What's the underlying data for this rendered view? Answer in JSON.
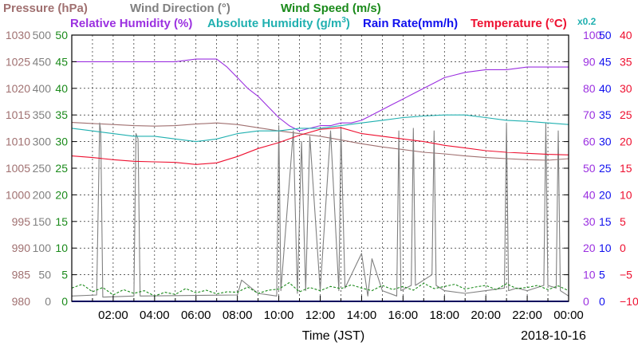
{
  "legend": {
    "pressure": "Pressure (hPa)",
    "wind_direction": "Wind Direction (°)",
    "wind_speed": "Wind Speed (m/s)",
    "relative_humidity": "Relative Humidity (%)",
    "absolute_humidity": "Absolute Humidity (g/m",
    "absolute_humidity_sup": "3",
    "absolute_humidity_close": ")",
    "absolute_humidity_scale": "x0.2",
    "rain_rate": "Rain Rate(mm/h)",
    "temperature": "Temperature (°C)"
  },
  "xlabel": "Time (JST)",
  "date": "2018-10-16",
  "colors": {
    "pressure": "#a07070",
    "wind_direction": "#808080",
    "wind_speed": "#1a8a1a",
    "relative_humidity": "#9b30e0",
    "absolute_humidity": "#20b0b0",
    "rain_rate": "#1010ee",
    "temperature": "#ee1030"
  },
  "chart_data": {
    "type": "line",
    "title": "",
    "xlabel": "Time (JST)",
    "x_unit": "hours (JST), 2018-10-16",
    "xlim": [
      0,
      24
    ],
    "x_ticks": [
      "02:00",
      "04:00",
      "06:00",
      "08:00",
      "10:00",
      "12:00",
      "14:00",
      "16:00",
      "18:00",
      "20:00",
      "22:00",
      "00:00"
    ],
    "grid": true,
    "y_axes": {
      "pressure": {
        "ticks": [
          "1030",
          "1025",
          "1020",
          "1015",
          "1010",
          "1005",
          "1000",
          "995",
          "990",
          "985",
          "980"
        ],
        "ylim": [
          980,
          1030
        ]
      },
      "wind_direction": {
        "ticks": [
          "500",
          "450",
          "400",
          "350",
          "300",
          "250",
          "200",
          "150",
          "100",
          "50",
          "0"
        ],
        "ylim": [
          0,
          500
        ]
      },
      "wind_speed": {
        "ticks": [
          "50",
          "45",
          "40",
          "35",
          "30",
          "25",
          "20",
          "15",
          "10",
          "5",
          "0"
        ],
        "ylim": [
          0,
          50
        ]
      },
      "relative_humidity": {
        "ticks": [
          "100",
          "90",
          "80",
          "70",
          "60",
          "50",
          "40",
          "30",
          "20",
          "10",
          "0"
        ],
        "ylim": [
          0,
          100
        ]
      },
      "rain_rate": {
        "ticks": [
          "50",
          "45",
          "40",
          "35",
          "30",
          "25",
          "20",
          "15",
          "10",
          "5",
          "0"
        ],
        "ylim": [
          0,
          50
        ]
      },
      "temperature": {
        "ticks": [
          "40",
          "35",
          "30",
          "25",
          "20",
          "15",
          "10",
          "5",
          "0",
          "−5",
          "−10"
        ],
        "ylim": [
          -10,
          40
        ]
      }
    },
    "series": [
      {
        "name": "Pressure (hPa)",
        "axis": "pressure",
        "x": [
          0,
          1,
          2,
          3,
          4,
          5,
          6,
          7,
          8,
          9,
          10,
          11,
          12,
          13,
          14,
          15,
          16,
          17,
          18,
          19,
          20,
          21,
          22,
          23,
          24
        ],
        "y": [
          1013.6,
          1013.4,
          1013.2,
          1013.0,
          1012.9,
          1013.0,
          1013.3,
          1013.5,
          1013.2,
          1012.6,
          1012.0,
          1011.5,
          1011.0,
          1010.3,
          1009.6,
          1009.0,
          1008.5,
          1008.0,
          1007.7,
          1007.3,
          1007.0,
          1006.8,
          1006.6,
          1006.5,
          1006.8
        ]
      },
      {
        "name": "Wind Direction (°)",
        "axis": "wind_direction",
        "style": "spiky",
        "x": [
          0,
          1.2,
          1.35,
          1.4,
          1.5,
          3.0,
          3.1,
          3.2,
          3.3,
          8.0,
          8.2,
          9.0,
          9.9,
          10.0,
          10.1,
          10.7,
          10.9,
          11.1,
          11.3,
          11.5,
          12.0,
          12.5,
          12.9,
          13.0,
          13.2,
          14.0,
          14.3,
          14.5,
          15.0,
          15.7,
          15.8,
          15.9,
          16.4,
          16.5,
          16.6,
          17.0,
          17.4,
          17.5,
          17.6,
          18.0,
          19.0,
          20.0,
          20.9,
          21.0,
          21.1,
          21.5,
          22.0,
          22.8,
          22.9,
          23.0,
          23.4,
          23.5,
          23.6,
          24.0
        ],
        "y": [
          10,
          12,
          335,
          320,
          8,
          10,
          315,
          305,
          10,
          12,
          40,
          15,
          10,
          330,
          20,
          320,
          15,
          300,
          20,
          310,
          20,
          320,
          20,
          325,
          25,
          90,
          10,
          80,
          20,
          10,
          320,
          20,
          30,
          325,
          30,
          40,
          50,
          320,
          30,
          20,
          15,
          20,
          25,
          335,
          20,
          25,
          20,
          30,
          335,
          30,
          25,
          320,
          20,
          10
        ]
      },
      {
        "name": "Wind Speed (m/s)",
        "axis": "wind_speed",
        "style": "dashed",
        "x": [
          0,
          0.5,
          1,
          1.5,
          2,
          2.5,
          3,
          3.5,
          4,
          4.5,
          5,
          5.5,
          6,
          6.5,
          7,
          7.5,
          8,
          8.5,
          9,
          9.5,
          10,
          10.5,
          11,
          11.5,
          12,
          12.5,
          13,
          13.5,
          14,
          14.5,
          15,
          15.5,
          16,
          16.5,
          17,
          17.5,
          18,
          18.5,
          19,
          19.5,
          20,
          20.5,
          21,
          21.5,
          22,
          22.5,
          23,
          23.5,
          24
        ],
        "y": [
          2.5,
          3.2,
          1.8,
          2.6,
          1.2,
          2.2,
          1.5,
          2.0,
          1.0,
          1.7,
          1.3,
          2.4,
          1.6,
          2.1,
          1.4,
          1.8,
          1.7,
          2.7,
          1.5,
          2.1,
          2.3,
          3.5,
          1.8,
          2.6,
          2.0,
          2.8,
          2.4,
          3.1,
          2.5,
          2.0,
          3.0,
          2.2,
          2.8,
          2.1,
          3.4,
          2.4,
          2.8,
          3.2,
          2.3,
          2.7,
          3.0,
          2.2,
          3.3,
          2.4,
          2.6,
          3.0,
          2.2,
          2.9,
          2.0
        ]
      },
      {
        "name": "Relative Humidity (%)",
        "axis": "relative_humidity",
        "x": [
          0,
          1,
          2,
          3,
          4,
          5,
          6,
          7,
          7.5,
          8,
          8.5,
          9,
          9.5,
          10,
          10.5,
          11,
          11.5,
          12,
          12.5,
          13,
          13.5,
          14,
          14.5,
          15,
          15.5,
          16,
          16.5,
          17,
          17.5,
          18,
          18.5,
          19,
          20,
          21,
          22,
          23,
          24
        ],
        "y": [
          90,
          90,
          90,
          90,
          90,
          90,
          91,
          91,
          88,
          84,
          80,
          77,
          73,
          69,
          66,
          64,
          65,
          66,
          66,
          67,
          67,
          68,
          70,
          72,
          74,
          76,
          78,
          80,
          82,
          84,
          85,
          86,
          87,
          87,
          88,
          88,
          88
        ]
      },
      {
        "name": "Absolute Humidity (g/m3) x0.2",
        "axis": "rain_rate",
        "x": [
          0,
          1,
          2,
          3,
          4,
          5,
          6,
          7,
          8,
          9,
          10,
          11,
          12,
          13,
          14,
          15,
          16,
          17,
          18,
          19,
          20,
          21,
          22,
          23,
          24
        ],
        "y": [
          32.5,
          32.0,
          31.5,
          31.0,
          31.0,
          30.5,
          30.0,
          30.5,
          31.5,
          32.0,
          32.0,
          32.5,
          32.5,
          33.0,
          33.5,
          34.0,
          34.5,
          34.8,
          35.0,
          35.0,
          34.5,
          34.0,
          33.8,
          33.5,
          33.2
        ]
      },
      {
        "name": "Rain Rate(mm/h)",
        "axis": "rain_rate",
        "x": [
          0,
          24
        ],
        "y": [
          0,
          0
        ]
      },
      {
        "name": "Temperature (°C)",
        "axis": "temperature",
        "x": [
          0,
          1,
          2,
          3,
          4,
          5,
          6,
          7,
          8,
          9,
          10,
          11,
          12,
          13,
          14,
          15,
          16,
          17,
          18,
          19,
          20,
          21,
          22,
          23,
          24
        ],
        "y": [
          17.3,
          17.0,
          16.6,
          16.3,
          16.2,
          16.1,
          15.7,
          16.0,
          17.2,
          18.7,
          19.8,
          21.2,
          22.3,
          22.6,
          21.5,
          21.0,
          20.5,
          20.0,
          19.3,
          18.8,
          18.3,
          18.0,
          17.8,
          17.6,
          17.5
        ]
      }
    ]
  }
}
